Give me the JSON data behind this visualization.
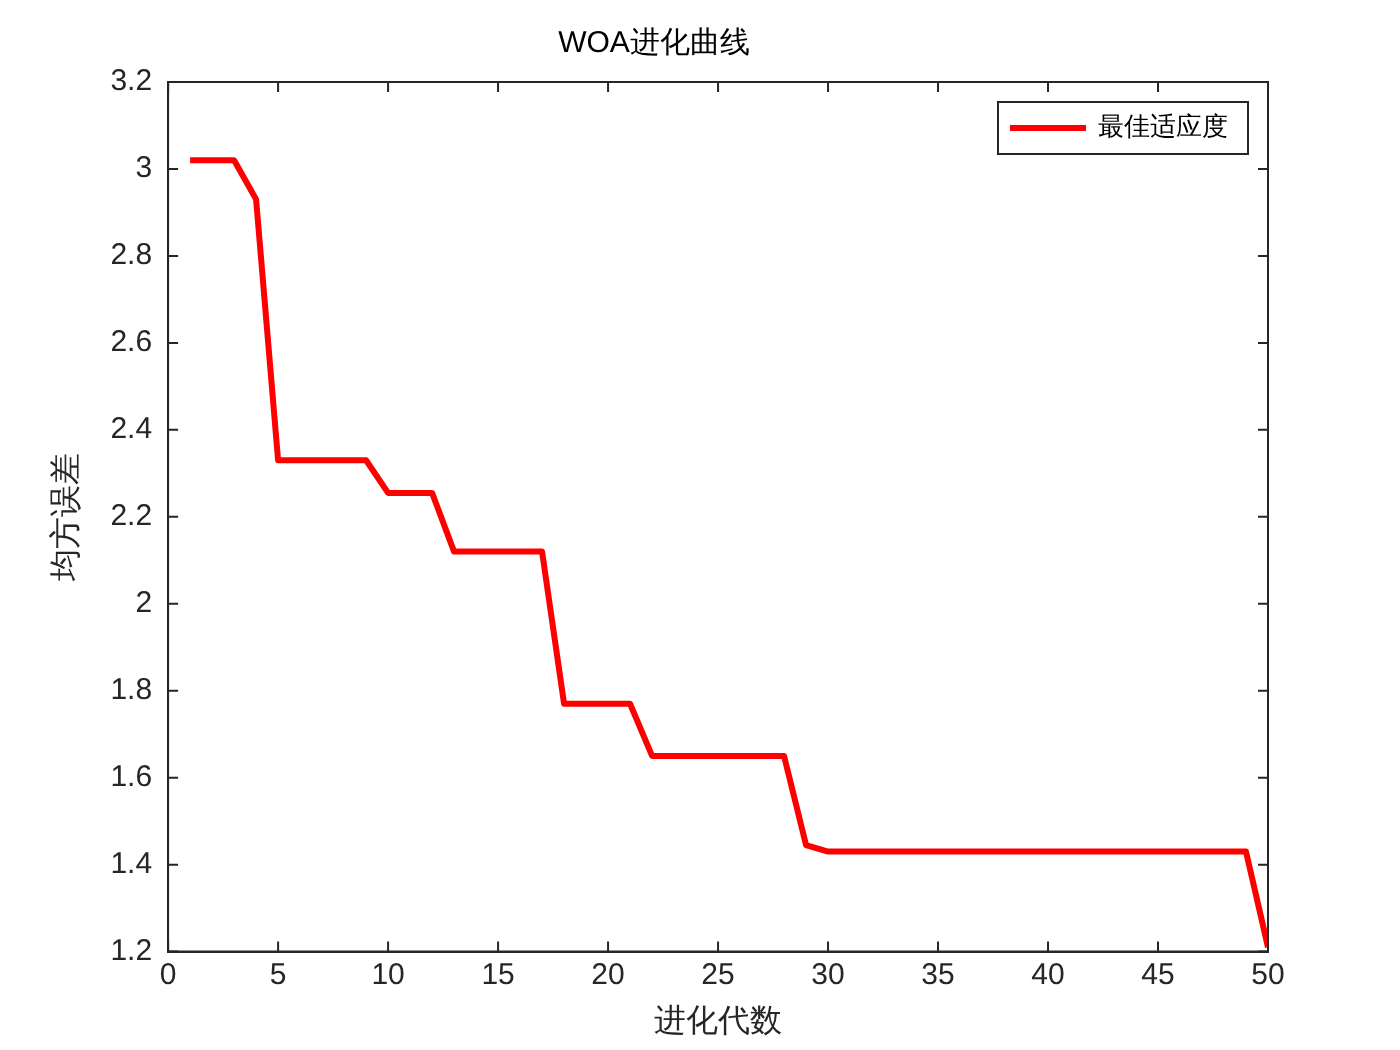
{
  "chart_data": {
    "type": "line",
    "title": "WOA进化曲线",
    "xlabel": "进化代数",
    "ylabel": "均方误差",
    "x": [
      1,
      2,
      3,
      4,
      5,
      6,
      7,
      8,
      9,
      10,
      11,
      12,
      13,
      14,
      15,
      16,
      17,
      18,
      19,
      20,
      21,
      22,
      23,
      24,
      25,
      26,
      27,
      28,
      29,
      30,
      31,
      32,
      33,
      34,
      35,
      36,
      37,
      38,
      39,
      40,
      41,
      42,
      43,
      44,
      45,
      46,
      47,
      48,
      49,
      50
    ],
    "series": [
      {
        "name": "最佳适应度",
        "color": "#ff0000",
        "values": [
          3.02,
          3.02,
          3.02,
          2.93,
          2.33,
          2.33,
          2.33,
          2.33,
          2.33,
          2.255,
          2.255,
          2.255,
          2.12,
          2.12,
          2.12,
          2.12,
          2.12,
          1.77,
          1.77,
          1.77,
          1.77,
          1.65,
          1.65,
          1.65,
          1.65,
          1.65,
          1.65,
          1.65,
          1.445,
          1.43,
          1.43,
          1.43,
          1.43,
          1.43,
          1.43,
          1.43,
          1.43,
          1.43,
          1.43,
          1.43,
          1.43,
          1.43,
          1.43,
          1.43,
          1.43,
          1.43,
          1.43,
          1.43,
          1.43,
          1.21
        ]
      }
    ],
    "xlim": [
      0,
      50
    ],
    "xticks": [
      0,
      5,
      10,
      15,
      20,
      25,
      30,
      35,
      40,
      45,
      50
    ],
    "ylim": [
      1.2,
      3.2
    ],
    "yticks": [
      1.2,
      1.4,
      1.6,
      1.8,
      2,
      2.2,
      2.4,
      2.6,
      2.8,
      3,
      3.2
    ],
    "legend": "top right",
    "marker": "none",
    "line_style": "solid"
  }
}
